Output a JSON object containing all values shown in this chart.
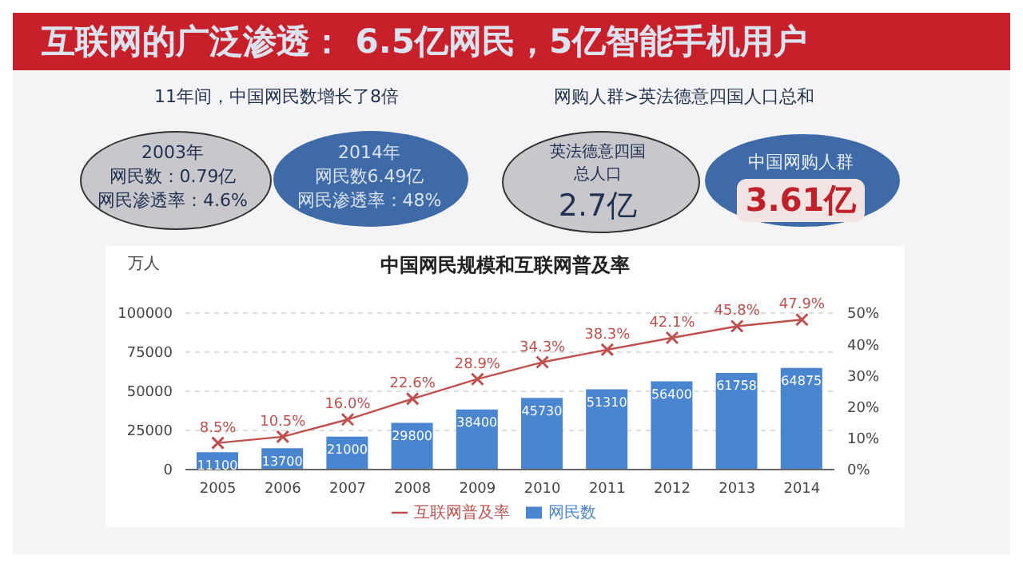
{
  "chart_data": {
    "type": "bar",
    "title": "互联网的广泛渗透： 6.5亿网民，5亿智能手机用户",
    "subtitle": "中国网民规模和互联网普及率",
    "ylabel": "万人",
    "annotations": [
      "11年间，中国网民数增长了8倍",
      "网购人群>英法德意四国人口总和",
      "2003年",
      "网民数：0.79亿",
      "网民渗透率：4.6%",
      "2014年",
      "网民数6.49亿",
      "网民渗透率：48%",
      "英法德意四国总人口",
      "2.7亿",
      "中国网购人群",
      "3.61亿"
    ],
    "categories": [
      "2005",
      "2006",
      "2007",
      "2008",
      "2009",
      "2010",
      "2011",
      "2012",
      "2013",
      "2014"
    ],
    "series": [
      {
        "name": "网民数",
        "color": "#4a86d0",
        "values": [
          11100,
          13700,
          21000,
          29800,
          38400,
          45730,
          51310,
          56400,
          61758,
          64875
        ]
      },
      {
        "name": "互联网普及率",
        "type": "line",
        "axis": "y2",
        "color": "#c0504d",
        "marker": "cross",
        "values": [
          8.5,
          10.5,
          16.0,
          22.6,
          28.9,
          34.3,
          38.3,
          42.1,
          45.8,
          47.9
        ],
        "value_labels": [
          "8.5%",
          "10.5%",
          "16.0%",
          "22.6%",
          "28.9%",
          "34.3%",
          "38.3%",
          "42.1%",
          "45.8%",
          "47.9%"
        ]
      }
    ],
    "data_labels": true,
    "ylim": [
      0,
      100000
    ],
    "yticks": [
      0,
      25000,
      50000,
      75000,
      100000
    ],
    "y2lim": [
      0,
      50
    ],
    "y2ticks": [
      {
        "value": 0,
        "label": "0%"
      },
      {
        "value": 10,
        "label": "10%"
      },
      {
        "value": 20,
        "label": "20%"
      },
      {
        "value": 30,
        "label": "30%"
      },
      {
        "value": 40,
        "label": "40%"
      },
      {
        "value": 50,
        "label": "50%"
      }
    ],
    "grid": "y",
    "legend": "bottom"
  }
}
